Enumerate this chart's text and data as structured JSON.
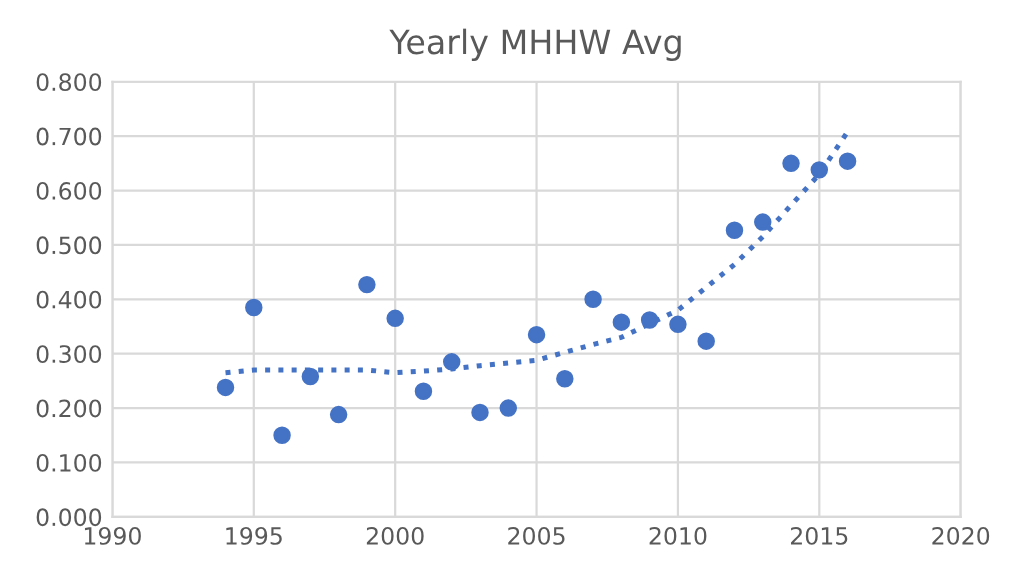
{
  "chart_data": {
    "type": "scatter",
    "title": "Yearly MHHW Avg",
    "series": [
      {
        "color": "#4472c4",
        "marker": "circle",
        "x": [
          1994,
          1995,
          1996,
          1997,
          1998,
          1999,
          2000,
          2001,
          2002,
          2003,
          2004,
          2005,
          2006,
          2007,
          2008,
          2009,
          2010,
          2011,
          2012,
          2013,
          2014,
          2015,
          2016
        ],
        "values": [
          0.238,
          0.385,
          0.15,
          0.258,
          0.188,
          0.427,
          0.365,
          0.231,
          0.285,
          0.192,
          0.2,
          0.335,
          0.254,
          0.4,
          0.358,
          0.362,
          0.354,
          0.323,
          0.527,
          0.542,
          0.65,
          0.638,
          0.654
        ]
      },
      {
        "type": "line",
        "color": "#4472c4",
        "line_style": "dotted",
        "marker": "none",
        "x": [
          1994,
          1995,
          1997,
          1999,
          2000,
          2001,
          2002,
          2003,
          2005,
          2007,
          2008,
          2010,
          2012,
          2013,
          2014,
          2015,
          2016
        ],
        "values": [
          0.265,
          0.27,
          0.27,
          0.27,
          0.265,
          0.268,
          0.272,
          0.278,
          0.288,
          0.317,
          0.33,
          0.38,
          0.464,
          0.515,
          0.573,
          0.63,
          0.708
        ]
      }
    ],
    "xlim": [
      1990,
      2020
    ],
    "xticks": [
      1990,
      1995,
      2000,
      2005,
      2010,
      2015,
      2020
    ],
    "ylim": [
      0,
      0.8
    ],
    "yticks": [
      {
        "value": 0,
        "label": "0.000"
      },
      {
        "value": 0.1,
        "label": "0.100"
      },
      {
        "value": 0.2,
        "label": "0.200"
      },
      {
        "value": 0.3,
        "label": "0.300"
      },
      {
        "value": 0.4,
        "label": "0.400"
      },
      {
        "value": 0.5,
        "label": "0.500"
      },
      {
        "value": 0.6,
        "label": "0.600"
      },
      {
        "value": 0.7,
        "label": "0.700"
      },
      {
        "value": 0.8,
        "label": "0.800"
      }
    ],
    "grid": true,
    "legend": false
  }
}
